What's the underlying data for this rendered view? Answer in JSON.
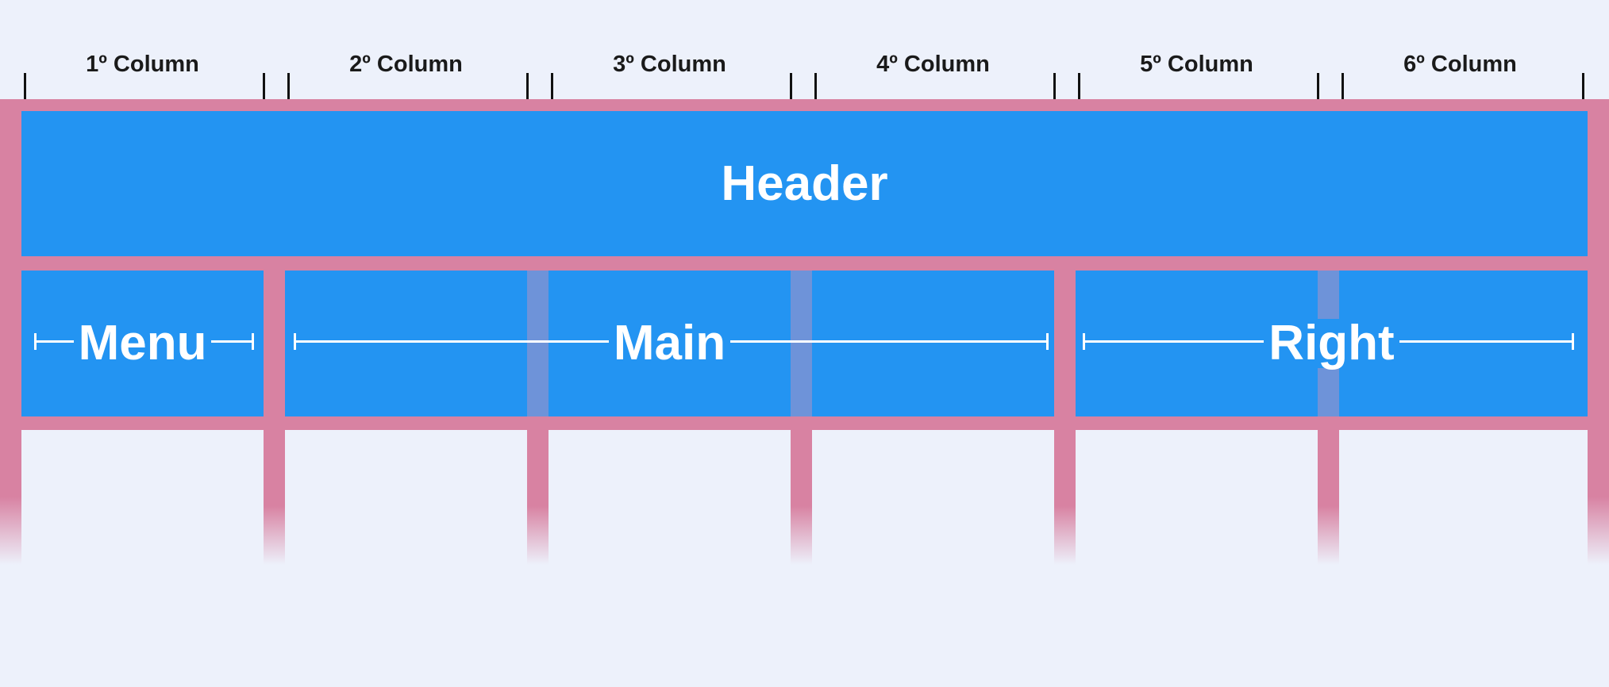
{
  "columns": [
    {
      "label": "1º Column"
    },
    {
      "label": "2º Column"
    },
    {
      "label": "3º Column"
    },
    {
      "label": "4º Column"
    },
    {
      "label": "5º Column"
    },
    {
      "label": "6º Column"
    }
  ],
  "areas": {
    "header": "Header",
    "menu": "Menu",
    "main": "Main",
    "right": "Right"
  },
  "colors": {
    "background": "#edf1fb",
    "grid": "#d882a2",
    "area": "#2394f2",
    "gutter_overlay": "#6e93d9",
    "label": "#ffffff"
  }
}
